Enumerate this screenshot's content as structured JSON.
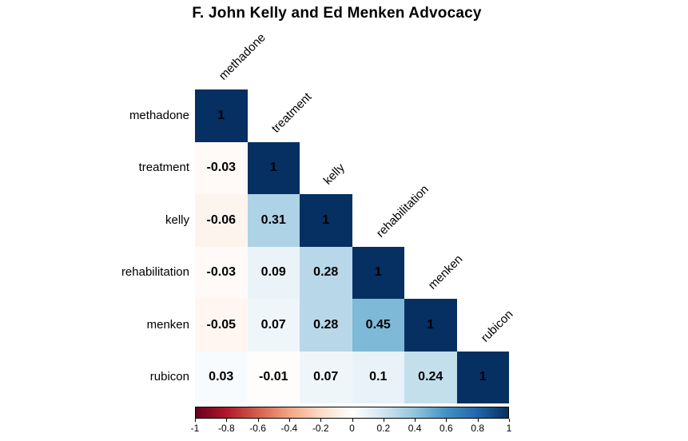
{
  "chart_data": {
    "type": "heatmap",
    "subtype": "correlation-matrix-lower-triangle",
    "title": "F. John Kelly and Ed Menken Advocacy",
    "variables": [
      "methadone",
      "treatment",
      "kelly",
      "rehabilitation",
      "menken",
      "rubicon"
    ],
    "matrix": [
      [
        1
      ],
      [
        -0.03,
        1
      ],
      [
        -0.06,
        0.31,
        1
      ],
      [
        -0.03,
        0.09,
        0.28,
        1
      ],
      [
        -0.05,
        0.07,
        0.28,
        0.45,
        1
      ],
      [
        0.03,
        -0.01,
        0.07,
        0.1,
        0.24,
        1
      ]
    ],
    "domain": [
      -1,
      1
    ],
    "palette": [
      "#67001F",
      "#B2182B",
      "#D6604D",
      "#F4A582",
      "#FDDBC7",
      "#FFFFFF",
      "#D1E5F0",
      "#92C5DE",
      "#4393C3",
      "#2166AC",
      "#053061"
    ],
    "colorbar": {
      "position": "bottom",
      "ticks": [
        -1,
        -0.8,
        -0.6,
        -0.4,
        -0.2,
        0,
        0.2,
        0.4,
        0.6,
        0.8,
        1
      ]
    },
    "value_text_color": "#000000",
    "background": "#FFFFFF",
    "grid": false
  }
}
